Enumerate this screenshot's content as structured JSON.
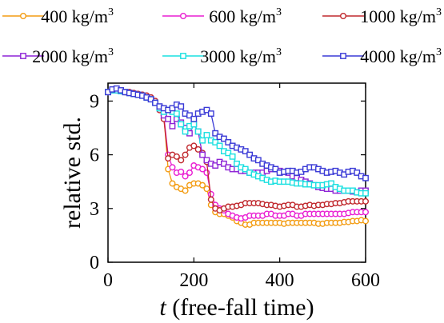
{
  "chart_data": {
    "type": "line",
    "xlabel_italic": "t",
    "xlabel_rest": " (free-fall time)",
    "ylabel": "relative std.",
    "xlim": [
      0,
      600
    ],
    "ylim": [
      0,
      10
    ],
    "x_ticks": [
      "0",
      "200",
      "400",
      "600"
    ],
    "y_ticks": [
      "0",
      "3",
      "6",
      "9"
    ],
    "grid": false,
    "legend_position": "top",
    "x": [
      0,
      10,
      20,
      30,
      40,
      50,
      60,
      70,
      80,
      90,
      100,
      110,
      120,
      130,
      140,
      150,
      160,
      170,
      180,
      190,
      200,
      210,
      220,
      230,
      240,
      250,
      260,
      270,
      280,
      290,
      300,
      310,
      320,
      330,
      340,
      350,
      360,
      370,
      380,
      390,
      400,
      410,
      420,
      430,
      440,
      450,
      460,
      470,
      480,
      490,
      500,
      510,
      520,
      530,
      540,
      550,
      560,
      570,
      580,
      590,
      600
    ],
    "series": [
      {
        "name": "400 kg/m",
        "superscript": "3",
        "color": "#F39C12",
        "marker": "circle",
        "values": [
          9.5,
          9.6,
          9.6,
          9.55,
          9.5,
          9.5,
          9.45,
          9.4,
          9.35,
          9.3,
          9.2,
          9.0,
          8.5,
          8.2,
          5.2,
          4.4,
          4.2,
          4.1,
          4.0,
          4.3,
          4.4,
          4.4,
          4.3,
          4.1,
          3.2,
          2.8,
          2.7,
          2.7,
          2.6,
          2.5,
          2.3,
          2.2,
          2.1,
          2.1,
          2.2,
          2.2,
          2.2,
          2.2,
          2.2,
          2.2,
          2.2,
          2.15,
          2.2,
          2.2,
          2.2,
          2.2,
          2.2,
          2.2,
          2.2,
          2.15,
          2.15,
          2.2,
          2.2,
          2.2,
          2.2,
          2.25,
          2.25,
          2.3,
          2.3,
          2.35,
          2.3
        ]
      },
      {
        "name": "600 kg/m",
        "superscript": "3",
        "color": "#E91ED2",
        "marker": "circle",
        "values": [
          9.5,
          9.6,
          9.6,
          9.55,
          9.5,
          9.5,
          9.45,
          9.4,
          9.35,
          9.3,
          9.2,
          9.0,
          8.5,
          8.2,
          6.0,
          5.3,
          5.0,
          5.05,
          4.8,
          5.0,
          5.4,
          5.3,
          5.2,
          5.0,
          3.8,
          3.2,
          3.0,
          2.9,
          2.7,
          2.6,
          2.5,
          2.45,
          2.5,
          2.6,
          2.6,
          2.6,
          2.6,
          2.7,
          2.7,
          2.6,
          2.6,
          2.6,
          2.7,
          2.7,
          2.6,
          2.6,
          2.7,
          2.7,
          2.7,
          2.7,
          2.7,
          2.7,
          2.7,
          2.7,
          2.7,
          2.7,
          2.75,
          2.8,
          2.8,
          2.8,
          2.8
        ]
      },
      {
        "name": "1000 kg/m",
        "superscript": "3",
        "color": "#C0282D",
        "marker": "circle",
        "values": [
          9.5,
          9.6,
          9.6,
          9.55,
          9.5,
          9.5,
          9.45,
          9.4,
          9.35,
          9.3,
          9.2,
          9.0,
          8.5,
          8.0,
          5.8,
          6.0,
          5.9,
          5.7,
          6.0,
          6.4,
          6.5,
          6.3,
          6.1,
          5.6,
          3.5,
          3.0,
          2.9,
          3.0,
          3.1,
          3.1,
          3.15,
          3.2,
          3.3,
          3.3,
          3.3,
          3.3,
          3.25,
          3.2,
          3.2,
          3.15,
          3.1,
          3.15,
          3.2,
          3.2,
          3.1,
          3.1,
          3.15,
          3.2,
          3.15,
          3.2,
          3.2,
          3.25,
          3.25,
          3.3,
          3.3,
          3.35,
          3.4,
          3.4,
          3.4,
          3.4,
          3.4
        ]
      },
      {
        "name": "2000 kg/m",
        "superscript": "3",
        "color": "#8E24D6",
        "marker": "square",
        "values": [
          9.5,
          9.6,
          9.6,
          9.55,
          9.5,
          9.45,
          9.4,
          9.35,
          9.3,
          9.2,
          9.1,
          8.9,
          8.6,
          8.2,
          8.0,
          7.6,
          8.0,
          7.8,
          7.5,
          7.2,
          7.7,
          7.3,
          6.0,
          5.7,
          5.5,
          5.4,
          5.6,
          5.5,
          5.3,
          5.2,
          5.2,
          5.1,
          5.1,
          5.0,
          5.0,
          5.0,
          5.0,
          5.1,
          5.2,
          5.2,
          5.1,
          5.05,
          5.0,
          4.8,
          4.7,
          4.6,
          4.5,
          4.4,
          4.3,
          4.2,
          4.15,
          4.1,
          4.1,
          4.0,
          4.0,
          4.0,
          4.0,
          3.95,
          3.9,
          4.0,
          4.0
        ]
      },
      {
        "name": "3000 kg/m",
        "superscript": "3",
        "color": "#19E0E0",
        "marker": "square",
        "values": [
          9.5,
          9.6,
          9.6,
          9.55,
          9.5,
          9.45,
          9.4,
          9.35,
          9.3,
          9.2,
          9.1,
          8.9,
          8.6,
          8.4,
          8.5,
          8.4,
          8.3,
          7.7,
          7.3,
          7.6,
          7.7,
          7.3,
          6.8,
          7.1,
          6.8,
          6.7,
          6.5,
          6.2,
          6.1,
          5.9,
          5.5,
          5.3,
          5.2,
          5.0,
          4.9,
          4.8,
          4.7,
          4.6,
          4.5,
          4.55,
          4.5,
          4.5,
          4.5,
          4.45,
          4.4,
          4.4,
          4.35,
          4.35,
          4.3,
          4.3,
          4.3,
          4.35,
          4.4,
          4.2,
          4.1,
          4.0,
          4.0,
          4.0,
          3.9,
          3.85,
          3.85
        ]
      },
      {
        "name": "4000 kg/m",
        "superscript": "3",
        "color": "#3A3AD6",
        "marker": "square",
        "values": [
          9.5,
          9.65,
          9.7,
          9.6,
          9.5,
          9.45,
          9.4,
          9.35,
          9.3,
          9.2,
          9.1,
          8.9,
          8.7,
          8.6,
          8.5,
          8.6,
          8.8,
          8.7,
          8.3,
          8.2,
          8.0,
          8.3,
          8.4,
          8.5,
          8.3,
          7.2,
          7.0,
          6.9,
          6.7,
          6.5,
          6.4,
          6.3,
          6.2,
          6.0,
          5.8,
          5.7,
          5.5,
          5.4,
          5.3,
          5.2,
          5.0,
          5.05,
          5.1,
          5.1,
          5.0,
          5.05,
          5.2,
          5.3,
          5.3,
          5.2,
          5.1,
          5.0,
          5.05,
          5.1,
          5.0,
          4.9,
          5.05,
          5.1,
          5.0,
          4.8,
          4.7
        ]
      }
    ]
  }
}
